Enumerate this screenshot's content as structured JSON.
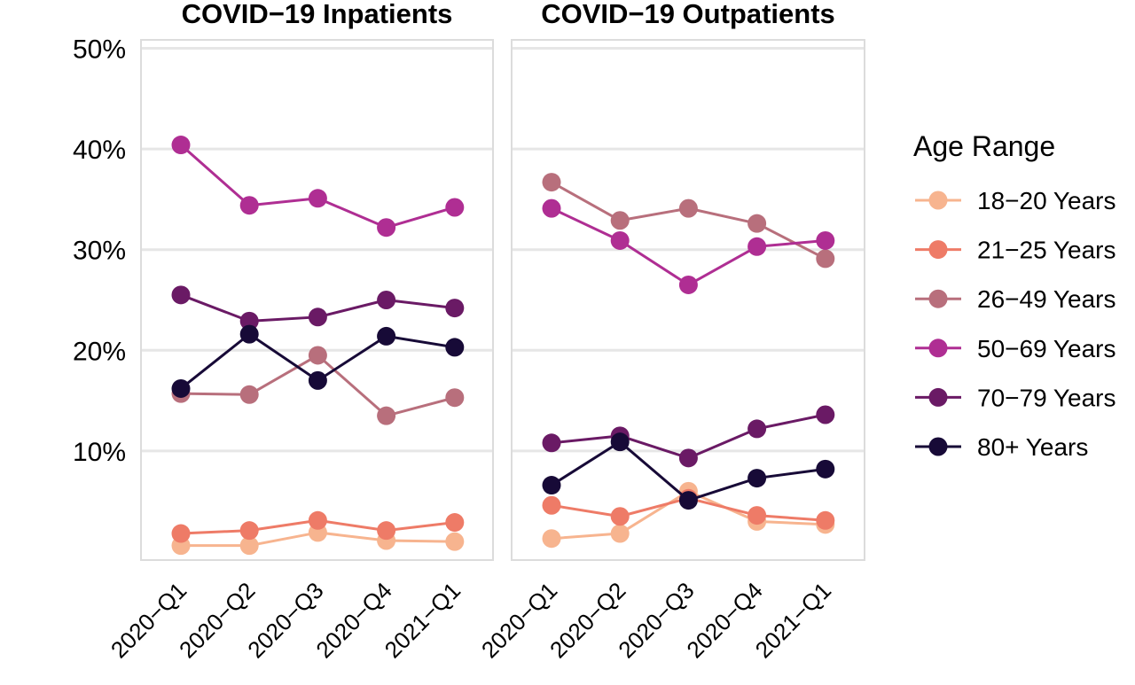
{
  "chart_data": {
    "type": "line",
    "x_categories": [
      "2020−Q1",
      "2020−Q2",
      "2020−Q3",
      "2020−Q4",
      "2021−Q1"
    ],
    "y_ticks": [
      {
        "value": 10,
        "label": "10%"
      },
      {
        "value": 20,
        "label": "20%"
      },
      {
        "value": 30,
        "label": "30%"
      },
      {
        "value": 40,
        "label": "40%"
      },
      {
        "value": 50,
        "label": "50%"
      }
    ],
    "ylim": [
      0,
      50
    ],
    "grid": true,
    "legend": {
      "title": "Age Range",
      "placement": "right",
      "entries": [
        {
          "name": "18−20 Years",
          "color": "#F7B48F"
        },
        {
          "name": "21−25 Years",
          "color": "#EE7B67"
        },
        {
          "name": "26−49 Years",
          "color": "#B86F7C"
        },
        {
          "name": "50−69 Years",
          "color": "#AF2E93"
        },
        {
          "name": "70−79 Years",
          "color": "#6A1A65"
        },
        {
          "name": "80+ Years",
          "color": "#170A37"
        }
      ]
    },
    "panels": [
      {
        "title": "COVID−19 Inpatients",
        "series": [
          {
            "name": "18−20 Years",
            "values": [
              0.6,
              0.6,
              1.9,
              1.1,
              1.0
            ]
          },
          {
            "name": "21−25 Years",
            "values": [
              1.8,
              2.1,
              3.1,
              2.1,
              2.9
            ]
          },
          {
            "name": "26−49 Years",
            "values": [
              15.7,
              15.6,
              19.5,
              13.5,
              15.3
            ]
          },
          {
            "name": "50−69 Years",
            "values": [
              40.4,
              34.4,
              35.1,
              32.2,
              34.2
            ]
          },
          {
            "name": "70−79 Years",
            "values": [
              25.5,
              22.9,
              23.3,
              25.0,
              24.2
            ]
          },
          {
            "name": "80+ Years",
            "values": [
              16.2,
              21.6,
              17.0,
              21.4,
              20.3
            ]
          }
        ]
      },
      {
        "title": "COVID−19 Outpatients",
        "series": [
          {
            "name": "18−20 Years",
            "values": [
              1.3,
              1.8,
              6.0,
              3.0,
              2.7
            ]
          },
          {
            "name": "21−25 Years",
            "values": [
              4.6,
              3.5,
              5.3,
              3.6,
              3.1
            ]
          },
          {
            "name": "26−49 Years",
            "values": [
              36.7,
              32.9,
              34.1,
              32.6,
              29.1
            ]
          },
          {
            "name": "50−69 Years",
            "values": [
              34.1,
              30.9,
              26.5,
              30.3,
              30.9
            ]
          },
          {
            "name": "70−79 Years",
            "values": [
              10.8,
              11.5,
              9.3,
              12.2,
              13.6
            ]
          },
          {
            "name": "80+ Years",
            "values": [
              6.6,
              10.9,
              5.1,
              7.3,
              8.2
            ]
          }
        ]
      }
    ]
  }
}
